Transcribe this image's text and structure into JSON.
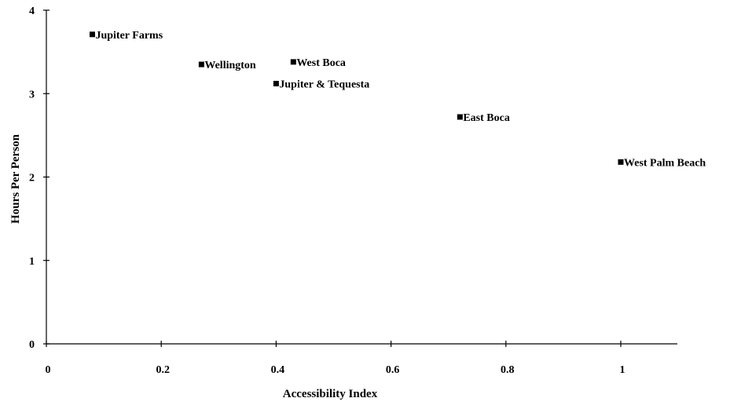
{
  "chart_data": {
    "type": "scatter",
    "title": "",
    "xlabel": "Accessibility Index",
    "ylabel": "Hours Per Person",
    "xlim": [
      0,
      1.1
    ],
    "ylim": [
      0,
      4
    ],
    "xticks": [
      {
        "value": 0,
        "label": "0"
      },
      {
        "value": 0.2,
        "label": "0.2"
      },
      {
        "value": 0.4,
        "label": "0.4"
      },
      {
        "value": 0.6,
        "label": "0.6"
      },
      {
        "value": 0.8,
        "label": "0.8"
      },
      {
        "value": 1,
        "label": "1"
      }
    ],
    "yticks": [
      {
        "value": 0,
        "label": "0"
      },
      {
        "value": 1,
        "label": "1"
      },
      {
        "value": 2,
        "label": "2"
      },
      {
        "value": 3,
        "label": "3"
      },
      {
        "value": 4,
        "label": "4"
      }
    ],
    "grid": false,
    "marker": "square",
    "marker_color": "#000000",
    "points": [
      {
        "label": "Jupiter Farms",
        "x": 0.08,
        "y": 3.71
      },
      {
        "label": "Wellington",
        "x": 0.27,
        "y": 3.35
      },
      {
        "label": "West Boca",
        "x": 0.43,
        "y": 3.38
      },
      {
        "label": "Jupiter & Tequesta",
        "x": 0.4,
        "y": 3.12
      },
      {
        "label": "East Boca",
        "x": 0.72,
        "y": 2.72
      },
      {
        "label": "West Palm Beach",
        "x": 1.0,
        "y": 2.18
      }
    ]
  }
}
